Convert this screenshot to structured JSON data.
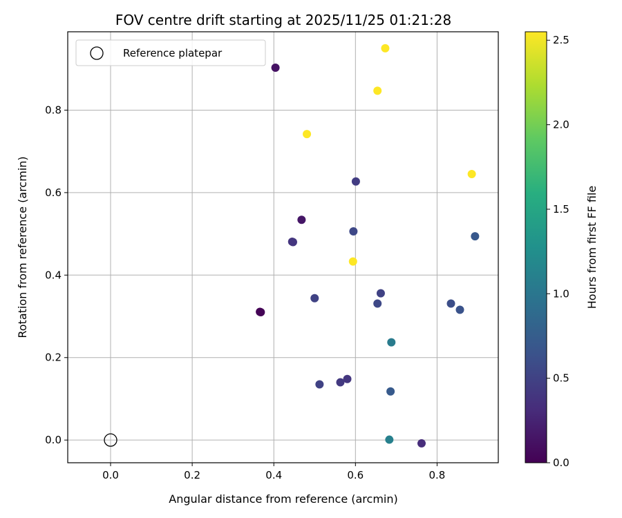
{
  "chart_data": {
    "type": "scatter",
    "title": "FOV centre drift starting at 2025/11/25 01:21:28",
    "xlabel": "Angular distance from reference (arcmin)",
    "ylabel": "Rotation from reference (arcmin)",
    "xlim": [
      -0.105,
      0.95
    ],
    "ylim": [
      -0.055,
      0.99
    ],
    "xticks": [
      0.0,
      0.2,
      0.4,
      0.6,
      0.8
    ],
    "xtick_labels": [
      "0.0",
      "0.2",
      "0.4",
      "0.6",
      "0.8"
    ],
    "yticks": [
      0.0,
      0.2,
      0.4,
      0.6,
      0.8
    ],
    "ytick_labels": [
      "0.0",
      "0.2",
      "0.4",
      "0.6",
      "0.8"
    ],
    "grid": true,
    "legend": {
      "position": "top-left",
      "entries": [
        "Reference platepar"
      ]
    },
    "reference_point": {
      "x": 0.0,
      "y": 0.0,
      "label": "Reference platepar"
    },
    "colorbar": {
      "label": "Hours from first FF file",
      "colormap": "viridis",
      "range": [
        0.0,
        2.55
      ],
      "ticks": [
        0.0,
        0.5,
        1.0,
        1.5,
        2.0,
        2.5
      ],
      "tick_labels": [
        "0.0",
        "0.5",
        "1.0",
        "1.5",
        "2.0",
        "2.5"
      ]
    },
    "points": [
      {
        "x": 0.366,
        "y": 0.311,
        "hours": 0.0
      },
      {
        "x": 0.368,
        "y": 0.31,
        "hours": 0.02
      },
      {
        "x": 0.404,
        "y": 0.903,
        "hours": 0.12
      },
      {
        "x": 0.468,
        "y": 0.534,
        "hours": 0.15
      },
      {
        "x": 0.445,
        "y": 0.481,
        "hours": 0.38
      },
      {
        "x": 0.447,
        "y": 0.48,
        "hours": 0.4
      },
      {
        "x": 0.601,
        "y": 0.627,
        "hours": 0.45
      },
      {
        "x": 0.5,
        "y": 0.344,
        "hours": 0.5
      },
      {
        "x": 0.595,
        "y": 0.506,
        "hours": 0.55
      },
      {
        "x": 0.58,
        "y": 0.148,
        "hours": 0.4
      },
      {
        "x": 0.563,
        "y": 0.14,
        "hours": 0.42
      },
      {
        "x": 0.512,
        "y": 0.135,
        "hours": 0.5
      },
      {
        "x": 0.762,
        "y": -0.008,
        "hours": 0.32
      },
      {
        "x": 0.662,
        "y": 0.356,
        "hours": 0.5
      },
      {
        "x": 0.654,
        "y": 0.331,
        "hours": 0.55
      },
      {
        "x": 0.834,
        "y": 0.331,
        "hours": 0.6
      },
      {
        "x": 0.856,
        "y": 0.316,
        "hours": 0.65
      },
      {
        "x": 0.893,
        "y": 0.494,
        "hours": 0.7
      },
      {
        "x": 0.686,
        "y": 0.118,
        "hours": 0.72
      },
      {
        "x": 0.688,
        "y": 0.237,
        "hours": 1.05
      },
      {
        "x": 0.683,
        "y": 0.001,
        "hours": 1.1
      },
      {
        "x": 0.594,
        "y": 0.433,
        "hours": 2.55
      },
      {
        "x": 0.481,
        "y": 0.742,
        "hours": 2.55
      },
      {
        "x": 0.654,
        "y": 0.847,
        "hours": 2.55
      },
      {
        "x": 0.673,
        "y": 0.95,
        "hours": 2.55
      },
      {
        "x": 0.885,
        "y": 0.645,
        "hours": 2.55
      }
    ]
  }
}
